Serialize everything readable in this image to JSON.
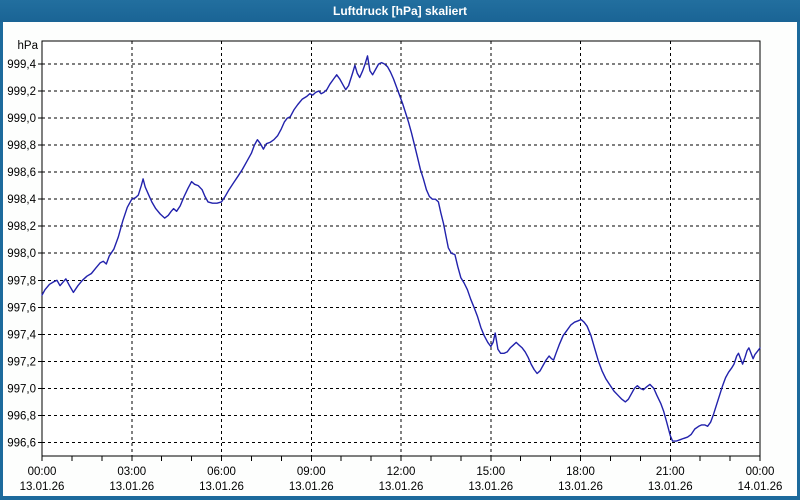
{
  "window": {
    "title": "Luftdruck [hPa] skaliert"
  },
  "colors": {
    "titlebar": "#1c6a9c",
    "frame": "#1c6a9c",
    "content_background": "#fdfefd",
    "plot_background": "#ffffff",
    "grid": "#000000",
    "line": "#2222ac",
    "label_text": "#000000"
  },
  "chart_data": {
    "type": "line",
    "title": "Luftdruck [hPa] skaliert",
    "ylabel": "hPa",
    "xlabel": "",
    "legend": "none",
    "grid": "dashed",
    "xlim_hours": [
      0,
      24
    ],
    "ylim": [
      996.5,
      999.57
    ],
    "y_ticks": {
      "values": [
        996.6,
        996.8,
        997.0,
        997.2,
        997.4,
        997.6,
        997.8,
        998.0,
        998.2,
        998.4,
        998.6,
        998.8,
        999.0,
        999.2,
        999.4
      ],
      "labels": [
        "996,6",
        "996,8",
        "997,0",
        "997,2",
        "997,4",
        "997,6",
        "997,8",
        "998,0",
        "998,2",
        "998,4",
        "998,6",
        "998,8",
        "999,0",
        "999,2",
        "999,4"
      ]
    },
    "x_ticks": [
      {
        "hour": 0,
        "time": "00:00",
        "date": "13.01.26"
      },
      {
        "hour": 3,
        "time": "03:00",
        "date": "13.01.26"
      },
      {
        "hour": 6,
        "time": "06:00",
        "date": "13.01.26"
      },
      {
        "hour": 9,
        "time": "09:00",
        "date": "13.01.26"
      },
      {
        "hour": 12,
        "time": "12:00",
        "date": "13.01.26"
      },
      {
        "hour": 15,
        "time": "15:00",
        "date": "13.01.26"
      },
      {
        "hour": 18,
        "time": "18:00",
        "date": "13.01.26"
      },
      {
        "hour": 21,
        "time": "21:00",
        "date": "13.01.26"
      },
      {
        "hour": 24,
        "time": "00:00",
        "date": "14.01.26"
      }
    ],
    "x_minor_tick_interval_hours": 1,
    "series": [
      {
        "name": "Luftdruck",
        "unit": "hPa",
        "color": "#2222ac",
        "points": [
          [
            0.0,
            997.69
          ],
          [
            0.1,
            997.73
          ],
          [
            0.25,
            997.77
          ],
          [
            0.4,
            997.79
          ],
          [
            0.5,
            997.8
          ],
          [
            0.6,
            997.76
          ],
          [
            0.72,
            997.79
          ],
          [
            0.8,
            997.81
          ],
          [
            0.92,
            997.76
          ],
          [
            1.05,
            997.71
          ],
          [
            1.2,
            997.76
          ],
          [
            1.35,
            997.8
          ],
          [
            1.5,
            997.83
          ],
          [
            1.65,
            997.85
          ],
          [
            1.8,
            997.89
          ],
          [
            1.95,
            997.93
          ],
          [
            2.05,
            997.94
          ],
          [
            2.15,
            997.92
          ],
          [
            2.25,
            997.98
          ],
          [
            2.4,
            998.03
          ],
          [
            2.55,
            998.12
          ],
          [
            2.7,
            998.24
          ],
          [
            2.85,
            998.34
          ],
          [
            3.0,
            998.4
          ],
          [
            3.12,
            998.41
          ],
          [
            3.22,
            998.43
          ],
          [
            3.32,
            998.5
          ],
          [
            3.38,
            998.55
          ],
          [
            3.45,
            998.49
          ],
          [
            3.55,
            998.44
          ],
          [
            3.67,
            998.38
          ],
          [
            3.8,
            998.33
          ],
          [
            3.95,
            998.29
          ],
          [
            4.1,
            998.26
          ],
          [
            4.22,
            998.28
          ],
          [
            4.32,
            998.31
          ],
          [
            4.4,
            998.33
          ],
          [
            4.5,
            998.31
          ],
          [
            4.62,
            998.35
          ],
          [
            4.75,
            998.42
          ],
          [
            4.88,
            998.48
          ],
          [
            5.0,
            998.53
          ],
          [
            5.1,
            998.51
          ],
          [
            5.22,
            998.5
          ],
          [
            5.35,
            998.47
          ],
          [
            5.45,
            998.42
          ],
          [
            5.55,
            998.38
          ],
          [
            5.7,
            998.37
          ],
          [
            5.85,
            998.37
          ],
          [
            6.0,
            998.38
          ],
          [
            6.12,
            998.42
          ],
          [
            6.25,
            998.47
          ],
          [
            6.4,
            998.52
          ],
          [
            6.55,
            998.57
          ],
          [
            6.7,
            998.62
          ],
          [
            6.85,
            998.68
          ],
          [
            7.0,
            998.74
          ],
          [
            7.1,
            998.8
          ],
          [
            7.2,
            998.84
          ],
          [
            7.3,
            998.81
          ],
          [
            7.4,
            998.77
          ],
          [
            7.5,
            998.81
          ],
          [
            7.62,
            998.82
          ],
          [
            7.75,
            998.84
          ],
          [
            7.88,
            998.87
          ],
          [
            8.0,
            998.92
          ],
          [
            8.1,
            998.97
          ],
          [
            8.2,
            999.0
          ],
          [
            8.3,
            999.01
          ],
          [
            8.42,
            999.06
          ],
          [
            8.55,
            999.1
          ],
          [
            8.7,
            999.14
          ],
          [
            8.85,
            999.16
          ],
          [
            8.95,
            999.18
          ],
          [
            9.05,
            999.17
          ],
          [
            9.15,
            999.19
          ],
          [
            9.25,
            999.2
          ],
          [
            9.33,
            999.18
          ],
          [
            9.42,
            999.19
          ],
          [
            9.52,
            999.21
          ],
          [
            9.62,
            999.25
          ],
          [
            9.75,
            999.29
          ],
          [
            9.85,
            999.32
          ],
          [
            9.95,
            999.29
          ],
          [
            10.05,
            999.25
          ],
          [
            10.15,
            999.21
          ],
          [
            10.25,
            999.24
          ],
          [
            10.38,
            999.33
          ],
          [
            10.46,
            999.39
          ],
          [
            10.54,
            999.33
          ],
          [
            10.62,
            999.3
          ],
          [
            10.72,
            999.35
          ],
          [
            10.8,
            999.4
          ],
          [
            10.88,
            999.46
          ],
          [
            10.96,
            999.35
          ],
          [
            11.05,
            999.32
          ],
          [
            11.15,
            999.36
          ],
          [
            11.25,
            999.4
          ],
          [
            11.35,
            999.41
          ],
          [
            11.45,
            999.4
          ],
          [
            11.55,
            999.38
          ],
          [
            11.65,
            999.34
          ],
          [
            11.75,
            999.29
          ],
          [
            11.85,
            999.23
          ],
          [
            11.95,
            999.17
          ],
          [
            12.05,
            999.11
          ],
          [
            12.15,
            999.04
          ],
          [
            12.25,
            998.97
          ],
          [
            12.35,
            998.89
          ],
          [
            12.45,
            998.8
          ],
          [
            12.55,
            998.71
          ],
          [
            12.65,
            998.62
          ],
          [
            12.75,
            998.55
          ],
          [
            12.85,
            998.47
          ],
          [
            12.95,
            998.42
          ],
          [
            13.05,
            998.4
          ],
          [
            13.15,
            998.4
          ],
          [
            13.25,
            998.38
          ],
          [
            13.33,
            998.3
          ],
          [
            13.42,
            998.22
          ],
          [
            13.5,
            998.13
          ],
          [
            13.58,
            998.04
          ],
          [
            13.68,
            998.0
          ],
          [
            13.8,
            997.99
          ],
          [
            13.9,
            997.9
          ],
          [
            14.0,
            997.82
          ],
          [
            14.11,
            997.78
          ],
          [
            14.22,
            997.73
          ],
          [
            14.33,
            997.66
          ],
          [
            14.44,
            997.6
          ],
          [
            14.56,
            997.53
          ],
          [
            14.67,
            997.45
          ],
          [
            14.78,
            997.39
          ],
          [
            14.9,
            997.34
          ],
          [
            15.0,
            997.31
          ],
          [
            15.08,
            997.34
          ],
          [
            15.15,
            997.41
          ],
          [
            15.24,
            997.29
          ],
          [
            15.33,
            997.26
          ],
          [
            15.45,
            997.26
          ],
          [
            15.55,
            997.27
          ],
          [
            15.65,
            997.3
          ],
          [
            15.75,
            997.32
          ],
          [
            15.85,
            997.34
          ],
          [
            15.95,
            997.32
          ],
          [
            16.05,
            997.3
          ],
          [
            16.15,
            997.27
          ],
          [
            16.25,
            997.23
          ],
          [
            16.35,
            997.18
          ],
          [
            16.45,
            997.14
          ],
          [
            16.55,
            997.11
          ],
          [
            16.65,
            997.13
          ],
          [
            16.75,
            997.17
          ],
          [
            16.85,
            997.21
          ],
          [
            16.95,
            997.24
          ],
          [
            17.03,
            997.22
          ],
          [
            17.1,
            997.21
          ],
          [
            17.18,
            997.26
          ],
          [
            17.3,
            997.33
          ],
          [
            17.42,
            997.39
          ],
          [
            17.55,
            997.43
          ],
          [
            17.68,
            997.47
          ],
          [
            17.8,
            997.49
          ],
          [
            17.92,
            997.5
          ],
          [
            18.02,
            997.51
          ],
          [
            18.12,
            997.49
          ],
          [
            18.22,
            997.46
          ],
          [
            18.35,
            997.39
          ],
          [
            18.48,
            997.29
          ],
          [
            18.6,
            997.2
          ],
          [
            18.72,
            997.13
          ],
          [
            18.85,
            997.07
          ],
          [
            19.0,
            997.02
          ],
          [
            19.12,
            996.98
          ],
          [
            19.25,
            996.95
          ],
          [
            19.38,
            996.92
          ],
          [
            19.5,
            996.9
          ],
          [
            19.6,
            996.92
          ],
          [
            19.7,
            996.96
          ],
          [
            19.8,
            997.0
          ],
          [
            19.9,
            997.02
          ],
          [
            20.0,
            997.0
          ],
          [
            20.1,
            996.99
          ],
          [
            20.2,
            997.01
          ],
          [
            20.32,
            997.03
          ],
          [
            20.45,
            997.0
          ],
          [
            20.55,
            996.95
          ],
          [
            20.68,
            996.89
          ],
          [
            20.78,
            996.83
          ],
          [
            20.88,
            996.75
          ],
          [
            21.0,
            996.65
          ],
          [
            21.08,
            996.61
          ],
          [
            21.2,
            996.61
          ],
          [
            21.32,
            996.62
          ],
          [
            21.45,
            996.63
          ],
          [
            21.58,
            996.64
          ],
          [
            21.7,
            996.66
          ],
          [
            21.82,
            996.7
          ],
          [
            21.95,
            996.72
          ],
          [
            22.05,
            996.73
          ],
          [
            22.15,
            996.73
          ],
          [
            22.25,
            996.72
          ],
          [
            22.35,
            996.75
          ],
          [
            22.45,
            996.81
          ],
          [
            22.55,
            996.88
          ],
          [
            22.65,
            996.95
          ],
          [
            22.75,
            997.02
          ],
          [
            22.85,
            997.08
          ],
          [
            22.95,
            997.12
          ],
          [
            23.05,
            997.15
          ],
          [
            23.13,
            997.18
          ],
          [
            23.22,
            997.24
          ],
          [
            23.28,
            997.26
          ],
          [
            23.35,
            997.22
          ],
          [
            23.42,
            997.18
          ],
          [
            23.5,
            997.23
          ],
          [
            23.57,
            997.28
          ],
          [
            23.63,
            997.3
          ],
          [
            23.7,
            997.26
          ],
          [
            23.77,
            997.22
          ],
          [
            23.83,
            997.25
          ],
          [
            23.9,
            997.27
          ],
          [
            23.97,
            997.29
          ],
          [
            24.0,
            997.3
          ]
        ]
      }
    ]
  }
}
